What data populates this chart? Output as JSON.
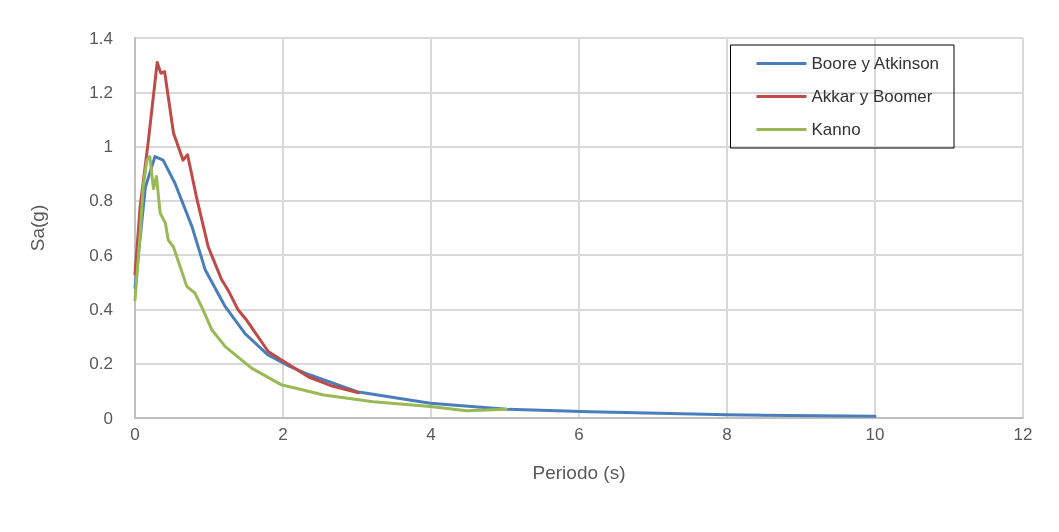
{
  "chart_data": {
    "type": "line",
    "xlabel": "Periodo (s)",
    "ylabel": "Sa(g)",
    "xlim": [
      0,
      12
    ],
    "xticks": [
      0,
      2,
      4,
      6,
      8,
      10,
      12
    ],
    "ylim": [
      0,
      1.4
    ],
    "yticks": [
      0,
      0.2,
      0.4,
      0.6,
      0.8,
      1,
      1.2,
      1.4
    ],
    "grid": true,
    "legend": "top right",
    "marker": "none",
    "line_style": "solid",
    "series": [
      {
        "name": "Boore y Atkinson",
        "color": "#4a7ebb",
        "x": [
          0,
          0.14,
          0.27,
          0.38,
          0.54,
          0.77,
          0.95,
          1.22,
          1.49,
          1.8,
          2.09,
          2.3,
          3,
          3.99,
          5.02,
          6.15,
          8,
          10
        ],
        "values": [
          0.48,
          0.85,
          0.963,
          0.95,
          0.865,
          0.705,
          0.545,
          0.41,
          0.31,
          0.232,
          0.19,
          0.165,
          0.097,
          0.054,
          0.032,
          0.023,
          0.012,
          0.006
        ]
      },
      {
        "name": "Akkar y Boomer",
        "color": "#be4b48",
        "x": [
          0,
          0.07,
          0.18,
          0.3,
          0.35,
          0.4,
          0.52,
          0.65,
          0.71,
          0.83,
          0.99,
          1.17,
          1.26,
          1.39,
          1.51,
          1.8,
          1.98,
          2.09,
          2.34,
          2.64,
          3.02
        ],
        "values": [
          0.53,
          0.78,
          1.02,
          1.31,
          1.27,
          1.276,
          1.05,
          0.95,
          0.97,
          0.815,
          0.63,
          0.51,
          0.47,
          0.4,
          0.36,
          0.245,
          0.214,
          0.195,
          0.152,
          0.12,
          0.093
        ]
      },
      {
        "name": "Kanno",
        "color": "#98b954",
        "x": [
          0,
          0.07,
          0.11,
          0.16,
          0.2,
          0.25,
          0.29,
          0.34,
          0.41,
          0.45,
          0.52,
          0.7,
          0.81,
          0.9,
          1.04,
          1.22,
          1.58,
          1.98,
          2.09,
          2.55,
          3.22,
          3.99,
          4.48,
          5.02
        ],
        "values": [
          0.435,
          0.68,
          0.85,
          0.95,
          0.963,
          0.845,
          0.89,
          0.755,
          0.718,
          0.655,
          0.63,
          0.485,
          0.46,
          0.41,
          0.324,
          0.263,
          0.183,
          0.122,
          0.115,
          0.085,
          0.06,
          0.042,
          0.027,
          0.032
        ]
      }
    ]
  }
}
